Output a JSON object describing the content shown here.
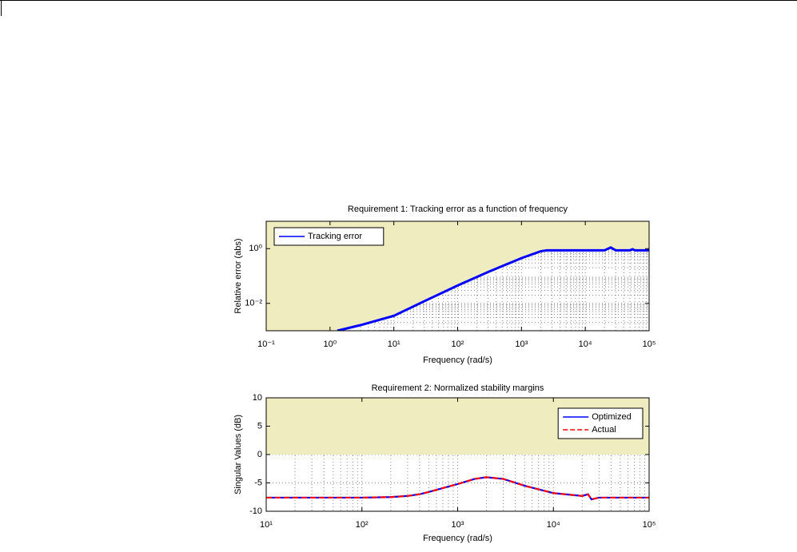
{
  "chart_data": [
    {
      "type": "line",
      "title": "Requirement 1: Tracking error as a function of frequency",
      "xlabel": "Frequency (rad/s)",
      "ylabel": "Relative error (abs)",
      "xscale": "log",
      "yscale": "log",
      "xlim": [
        0.1,
        100000
      ],
      "xticks": [
        {
          "value": 0.1,
          "label": "10⁻¹"
        },
        {
          "value": 1,
          "label": "10⁰"
        },
        {
          "value": 10,
          "label": "10¹"
        },
        {
          "value": 100,
          "label": "10²"
        },
        {
          "value": 1000,
          "label": "10³"
        },
        {
          "value": 10000,
          "label": "10⁴"
        },
        {
          "value": 100000,
          "label": "10⁵"
        }
      ],
      "ylim": [
        0.001,
        10
      ],
      "yticks": [
        {
          "value": 0.01,
          "label": "10⁻²"
        },
        {
          "value": 1,
          "label": "10⁰"
        }
      ],
      "grid": true,
      "minor_grid": true,
      "legend": "northwest",
      "shade": "above-curve",
      "shade_color": "#efedc0",
      "x": [
        1.3,
        3,
        10,
        30,
        100,
        300,
        1000,
        2000,
        2500,
        10000,
        20000,
        25000,
        30000,
        50000,
        55000,
        60000,
        100000
      ],
      "series": [
        {
          "name": "Tracking error",
          "color": "#0000ff",
          "dash": "solid",
          "values": [
            0.001,
            0.0016,
            0.0035,
            0.012,
            0.045,
            0.14,
            0.45,
            0.8,
            0.87,
            0.87,
            0.87,
            1.1,
            0.87,
            0.87,
            0.95,
            0.87,
            0.87
          ]
        }
      ]
    },
    {
      "type": "line",
      "title": "Requirement 2: Normalized stability margins",
      "xlabel": "Frequency (rad/s)",
      "ylabel": "Singular Values (dB)",
      "xscale": "log",
      "yscale": "linear",
      "xlim": [
        10,
        100000
      ],
      "xticks": [
        {
          "value": 10,
          "label": "10¹"
        },
        {
          "value": 100,
          "label": "10²"
        },
        {
          "value": 1000,
          "label": "10³"
        },
        {
          "value": 10000,
          "label": "10⁴"
        },
        {
          "value": 100000,
          "label": "10⁵"
        }
      ],
      "ylim": [
        -10,
        10
      ],
      "yticks": [
        -10,
        -5,
        0,
        5,
        10
      ],
      "grid": true,
      "minor_grid": true,
      "legend": "northeast",
      "shade_above": 0,
      "shade_color": "#efedc0",
      "x": [
        10,
        50,
        100,
        200,
        300,
        400,
        500,
        1000,
        1500,
        2000,
        3000,
        5000,
        10000,
        20000,
        23000,
        25000,
        30000,
        100000
      ],
      "series": [
        {
          "name": "Optimized",
          "color": "#0000ff",
          "dash": "solid",
          "values": [
            -7.6,
            -7.6,
            -7.6,
            -7.5,
            -7.3,
            -7.0,
            -6.6,
            -5.2,
            -4.3,
            -4.0,
            -4.3,
            -5.5,
            -6.8,
            -7.3,
            -7.0,
            -7.9,
            -7.6,
            -7.6
          ]
        },
        {
          "name": "Actual",
          "color": "#ff0000",
          "dash": "dashed",
          "values": [
            -7.6,
            -7.6,
            -7.6,
            -7.5,
            -7.3,
            -7.0,
            -6.6,
            -5.2,
            -4.3,
            -4.0,
            -4.3,
            -5.5,
            -6.8,
            -7.3,
            -7.0,
            -7.9,
            -7.6,
            -7.6
          ]
        }
      ]
    }
  ]
}
